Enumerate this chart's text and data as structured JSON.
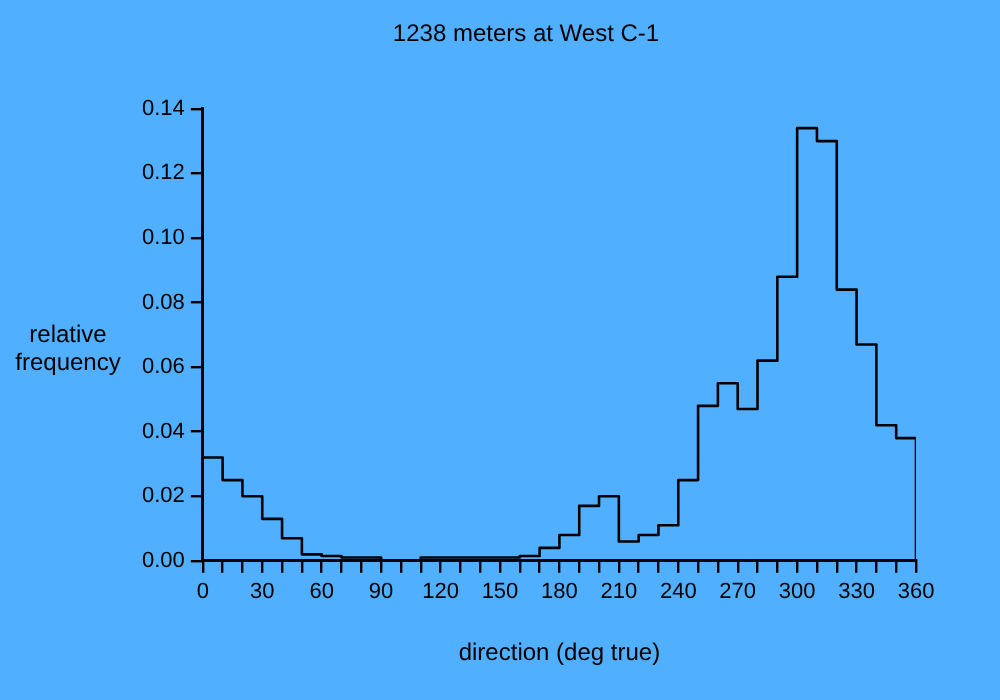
{
  "chart_data": {
    "type": "histogram",
    "title": "1238 meters at West C-1",
    "xlabel": "direction (deg true)",
    "ylabel": "relative frequency",
    "bins": [
      0,
      10,
      20,
      30,
      40,
      50,
      60,
      70,
      80,
      90,
      100,
      110,
      120,
      130,
      140,
      150,
      160,
      170,
      180,
      190,
      200,
      210,
      220,
      230,
      240,
      250,
      260,
      270,
      280,
      290,
      300,
      310,
      320,
      330,
      340,
      350,
      360
    ],
    "values": [
      0.032,
      0.025,
      0.02,
      0.013,
      0.007,
      0.002,
      0.0015,
      0.001,
      0.001,
      0,
      0,
      0.001,
      0.001,
      0.001,
      0.001,
      0.001,
      0.0015,
      0.004,
      0.008,
      0.017,
      0.02,
      0.006,
      0.008,
      0.011,
      0.025,
      0.048,
      0.055,
      0.047,
      0.062,
      0.088,
      0.134,
      0.13,
      0.084,
      0.067,
      0.042,
      0.038
    ],
    "color": "#000000",
    "xlim": [
      0,
      360
    ],
    "xticks": [
      0,
      {
        "value": 10,
        "label": null
      },
      {
        "value": 20,
        "label": null
      },
      30,
      {
        "value": 40,
        "label": null
      },
      {
        "value": 50,
        "label": null
      },
      60,
      {
        "value": 70,
        "label": null
      },
      {
        "value": 80,
        "label": null
      },
      90,
      {
        "value": 100,
        "label": null
      },
      {
        "value": 110,
        "label": null
      },
      120,
      {
        "value": 130,
        "label": null
      },
      {
        "value": 140,
        "label": null
      },
      150,
      {
        "value": 160,
        "label": null
      },
      {
        "value": 170,
        "label": null
      },
      180,
      {
        "value": 190,
        "label": null
      },
      {
        "value": 200,
        "label": null
      },
      210,
      {
        "value": 220,
        "label": null
      },
      {
        "value": 230,
        "label": null
      },
      240,
      {
        "value": 250,
        "label": null
      },
      {
        "value": 260,
        "label": null
      },
      270,
      {
        "value": 280,
        "label": null
      },
      {
        "value": 290,
        "label": null
      },
      300,
      {
        "value": 310,
        "label": null
      },
      {
        "value": 320,
        "label": null
      },
      330,
      {
        "value": 340,
        "label": null
      },
      {
        "value": 350,
        "label": null
      },
      360
    ],
    "ylim": [
      0,
      0.14
    ],
    "yticks": [
      {
        "value": 0,
        "label": "0.00"
      },
      {
        "value": 0.02,
        "label": "0.02"
      },
      {
        "value": 0.04,
        "label": "0.04"
      },
      {
        "value": 0.06,
        "label": "0.06"
      },
      {
        "value": 0.08,
        "label": "0.08"
      },
      {
        "value": 0.1,
        "label": "0.10"
      },
      {
        "value": 0.12,
        "label": "0.12"
      },
      {
        "value": 0.14,
        "label": "0.14"
      }
    ],
    "grid": false,
    "legend": false
  }
}
